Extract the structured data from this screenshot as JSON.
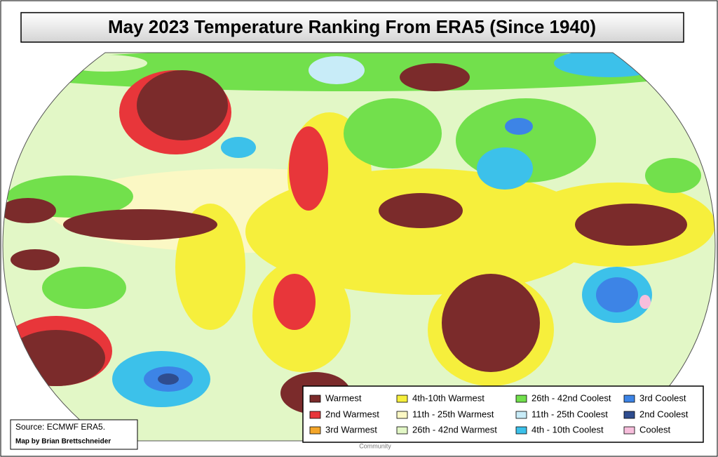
{
  "title": "May 2023 Temperature Ranking From ERA5 (Since 1940)",
  "legend": [
    {
      "label": "Warmest",
      "color": "#7b2b2b"
    },
    {
      "label": "4th-10th Warmest",
      "color": "#f6ef3c"
    },
    {
      "label": "26th - 42nd Coolest",
      "color": "#72e04c"
    },
    {
      "label": "3rd Coolest",
      "color": "#3d84e6"
    },
    {
      "label": "2nd Warmest",
      "color": "#e8363a"
    },
    {
      "label": "11th - 25th Warmest",
      "color": "#fbf8c4"
    },
    {
      "label": "11th - 25th Coolest",
      "color": "#c8ecf8"
    },
    {
      "label": "2nd Coolest",
      "color": "#2f4d8f"
    },
    {
      "label": "3rd Warmest",
      "color": "#f4a62a"
    },
    {
      "label": "26th - 42nd Warmest",
      "color": "#e2f7c6"
    },
    {
      "label": "4th - 10th Coolest",
      "color": "#3cc1ea"
    },
    {
      "label": "Coolest",
      "color": "#f7bedc"
    }
  ],
  "source": "Source: ECMWF ERA5.",
  "credit": "Map by Brian Brettschneider",
  "attribution": "Community"
}
